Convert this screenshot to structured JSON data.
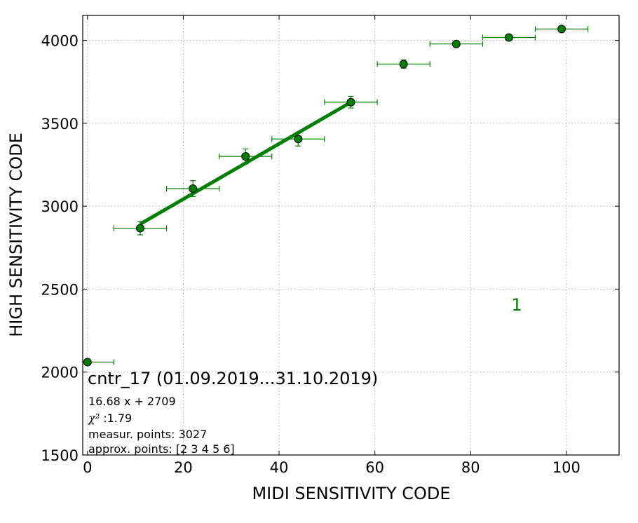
{
  "chart_data": {
    "type": "scatter",
    "xlabel": "MIDI SENSITIVITY CODE",
    "ylabel": "HIGH SENSITIVITY CODE",
    "xlim": [
      -1,
      111
    ],
    "ylim": [
      1500,
      4150
    ],
    "xticks": [
      0,
      20,
      40,
      60,
      80,
      100
    ],
    "yticks": [
      1500,
      2000,
      2500,
      3000,
      3500,
      4000
    ],
    "grid": true,
    "colors": {
      "points": "#008000",
      "errorbars": "#008000",
      "fit": "#008000",
      "label": "#008000"
    },
    "points": [
      {
        "x": 0,
        "y": 2060,
        "xerr": 5.5,
        "yerr": 0
      },
      {
        "x": 11,
        "y": 2867,
        "xerr": 5.5,
        "yerr": 40
      },
      {
        "x": 22,
        "y": 3106,
        "xerr": 5.5,
        "yerr": 48
      },
      {
        "x": 33,
        "y": 3300,
        "xerr": 5.5,
        "yerr": 45
      },
      {
        "x": 44,
        "y": 3405,
        "xerr": 5.5,
        "yerr": 42
      },
      {
        "x": 55,
        "y": 3627,
        "xerr": 5.5,
        "yerr": 35
      },
      {
        "x": 66,
        "y": 3857,
        "xerr": 5.5,
        "yerr": 25
      },
      {
        "x": 77,
        "y": 3978,
        "xerr": 5.5,
        "yerr": 10
      },
      {
        "x": 88,
        "y": 4017,
        "xerr": 5.5,
        "yerr": 8
      },
      {
        "x": 99,
        "y": 4068,
        "xerr": 5.5,
        "yerr": 8
      }
    ],
    "fit": {
      "slope": 16.68,
      "intercept": 2709,
      "x_range": [
        11,
        55
      ]
    },
    "series_label": {
      "text": "1",
      "x": 88.5,
      "y": 2370
    },
    "annotations": {
      "title": "cntr_17 (01.09.2019...31.10.2019)",
      "equation": "16.68 x + 2709",
      "chi_symbol": "χ²",
      "chi_value": " :1.79",
      "measur_points": "measur. points: 3027",
      "approx_points": "approx. points: [2 3 4 5 6]"
    }
  }
}
